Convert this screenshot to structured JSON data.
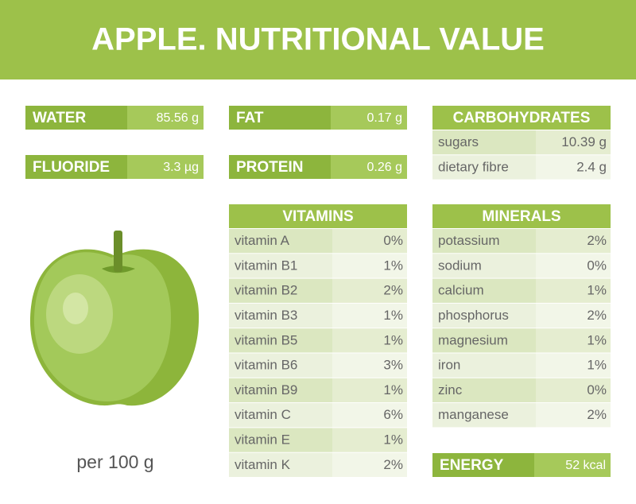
{
  "header": {
    "title": "APPLE. NUTRITIONAL VALUE"
  },
  "boxes": [
    {
      "label": "WATER",
      "value": "85.56 g"
    },
    {
      "label": "FLUORIDE",
      "value": "3.3 µg"
    },
    {
      "label": "FAT",
      "value": "0.17 g"
    },
    {
      "label": "PROTEIN",
      "value": "0.26 g"
    },
    {
      "label": "ENERGY",
      "value": "52 kcal"
    }
  ],
  "tables": [
    {
      "title": "CARBOHYDRATES",
      "rows": [
        [
          "sugars",
          "10.39 g"
        ],
        [
          "dietary fibre",
          "2.4 g"
        ]
      ]
    },
    {
      "title": "VITAMINS",
      "rows": [
        [
          "vitamin A",
          "0%"
        ],
        [
          "vitamin B1",
          "1%"
        ],
        [
          "vitamin B2",
          "2%"
        ],
        [
          "vitamin B3",
          "1%"
        ],
        [
          "vitamin B5",
          "1%"
        ],
        [
          "vitamin B6",
          "3%"
        ],
        [
          "vitamin B9",
          "1%"
        ],
        [
          "vitamin C",
          "6%"
        ],
        [
          "vitamin E",
          "1%"
        ],
        [
          "vitamin K",
          "2%"
        ]
      ]
    },
    {
      "title": "MINERALS",
      "rows": [
        [
          "potassium",
          "2%"
        ],
        [
          "sodium",
          "0%"
        ],
        [
          "calcium",
          "1%"
        ],
        [
          "phosphorus",
          "2%"
        ],
        [
          "magnesium",
          "1%"
        ],
        [
          "iron",
          "1%"
        ],
        [
          "zinc",
          "0%"
        ],
        [
          "manganese",
          "2%"
        ]
      ]
    }
  ],
  "footer": {
    "note": "per 100 g"
  }
}
